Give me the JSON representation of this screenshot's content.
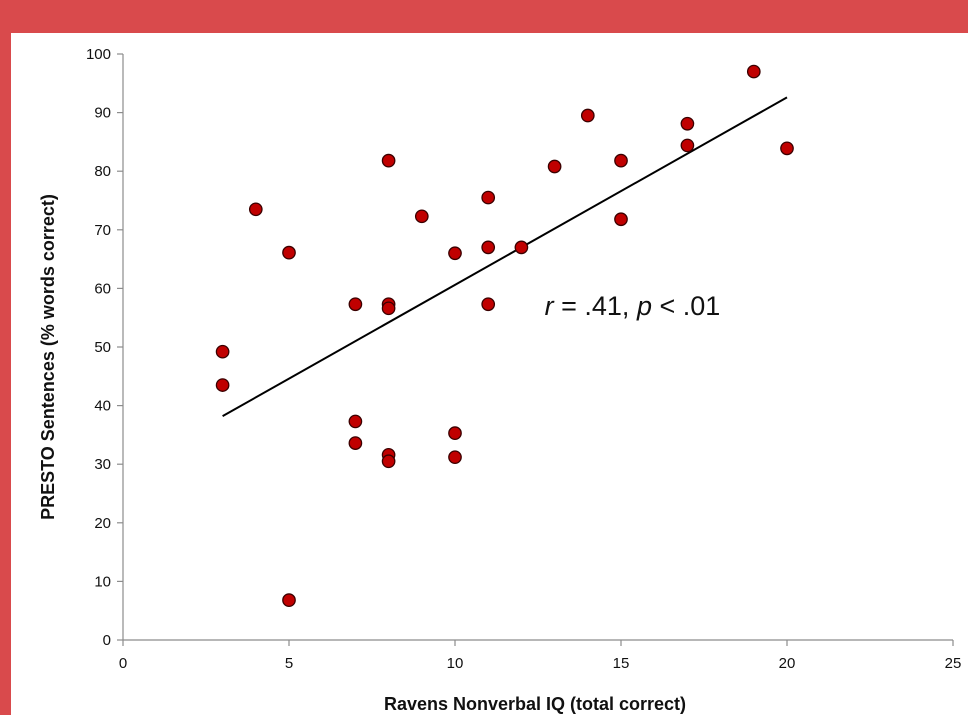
{
  "colors": {
    "frame": "#d94a4c",
    "background": "#ffffff",
    "marker_fill": "#c00000",
    "marker_stroke": "#3a0000",
    "line": "#000000",
    "axis": "#8c8c8c"
  },
  "chart_data": {
    "type": "scatter",
    "title": "",
    "xlabel": "Ravens Nonverbal IQ (total correct)",
    "ylabel": "PRESTO Sentences (% words correct)",
    "xlim": [
      0,
      25
    ],
    "ylim": [
      0,
      100
    ],
    "xticks": [
      0,
      5,
      10,
      15,
      20,
      25
    ],
    "yticks": [
      0,
      10,
      20,
      30,
      40,
      50,
      60,
      70,
      80,
      90,
      100
    ],
    "grid": false,
    "legend": "none",
    "points": [
      {
        "x": 3,
        "y": 49.2
      },
      {
        "x": 3,
        "y": 43.5
      },
      {
        "x": 4,
        "y": 73.5
      },
      {
        "x": 5,
        "y": 66.1
      },
      {
        "x": 5,
        "y": 6.8
      },
      {
        "x": 7,
        "y": 57.3
      },
      {
        "x": 7,
        "y": 37.3
      },
      {
        "x": 7,
        "y": 33.6
      },
      {
        "x": 8,
        "y": 81.8
      },
      {
        "x": 8,
        "y": 57.3
      },
      {
        "x": 8,
        "y": 56.6
      },
      {
        "x": 8,
        "y": 31.6
      },
      {
        "x": 8,
        "y": 30.5
      },
      {
        "x": 9,
        "y": 72.3
      },
      {
        "x": 10,
        "y": 66.0
      },
      {
        "x": 10,
        "y": 35.3
      },
      {
        "x": 10,
        "y": 31.2
      },
      {
        "x": 11,
        "y": 75.5
      },
      {
        "x": 11,
        "y": 67.0
      },
      {
        "x": 11,
        "y": 57.3
      },
      {
        "x": 12,
        "y": 67.0
      },
      {
        "x": 13,
        "y": 80.8
      },
      {
        "x": 14,
        "y": 89.5
      },
      {
        "x": 15,
        "y": 81.8
      },
      {
        "x": 15,
        "y": 71.8
      },
      {
        "x": 17,
        "y": 88.1
      },
      {
        "x": 17,
        "y": 84.4
      },
      {
        "x": 19,
        "y": 97.0
      },
      {
        "x": 20,
        "y": 83.9
      }
    ],
    "trendline": {
      "x": [
        3,
        20
      ],
      "y": [
        38.2,
        92.6
      ]
    },
    "annotation": {
      "r_label": "r",
      "r_value": " = .41, ",
      "p_label": "p",
      "p_value": " < .01",
      "x": 12.7,
      "y": 55.5
    }
  }
}
